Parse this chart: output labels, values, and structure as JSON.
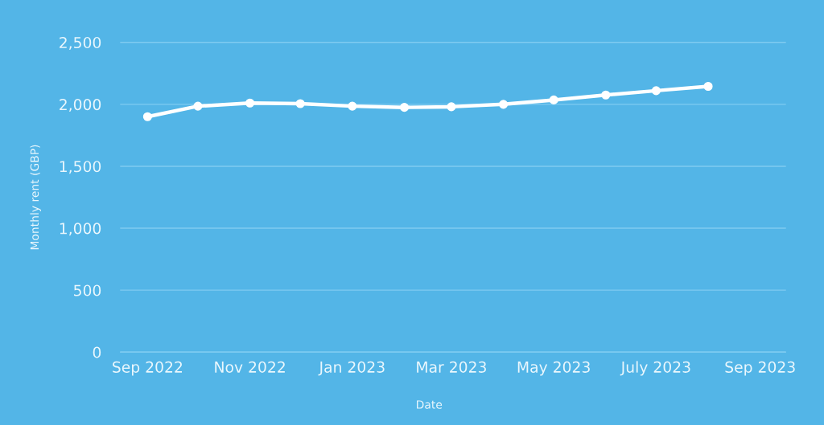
{
  "chart_data": {
    "type": "line",
    "xlabel": "Date",
    "ylabel": "Monthly rent (GBP)",
    "x": [
      "2022-09",
      "2022-10",
      "2022-11",
      "2022-12",
      "2023-01",
      "2023-02",
      "2023-03",
      "2023-04",
      "2023-05",
      "2023-06",
      "2023-07",
      "2023-08"
    ],
    "series": [
      {
        "color": "#ffffff",
        "values": [
          1900,
          1985,
          2010,
          2005,
          1985,
          1975,
          1980,
          2000,
          2035,
          2075,
          2110,
          2145
        ]
      }
    ],
    "xlim": [
      "2022-08-16",
      "2023-09-16"
    ],
    "xticks": [
      {
        "value": "2022-09",
        "label": "Sep 2022"
      },
      {
        "value": "2022-11",
        "label": "Nov 2022"
      },
      {
        "value": "2023-01",
        "label": "Jan 2023"
      },
      {
        "value": "2023-03",
        "label": "Mar 2023"
      },
      {
        "value": "2023-05",
        "label": "May 2023"
      },
      {
        "value": "2023-07",
        "label": "July 2023"
      },
      {
        "value": "2023-09",
        "label": "Sep 2023"
      }
    ],
    "ylim": [
      0,
      2500
    ],
    "yticks": [
      0,
      500,
      {
        "value": 1000,
        "label": "1,000"
      },
      {
        "value": 1500,
        "label": "1,500"
      },
      {
        "value": 2000,
        "label": "2,000"
      },
      {
        "value": 2500,
        "label": "2,500"
      }
    ],
    "grid": "y",
    "marker": "circle",
    "line_style": "solid"
  }
}
